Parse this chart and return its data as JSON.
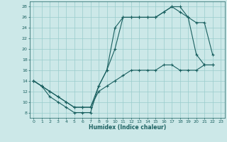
{
  "xlabel": "Humidex (Indice chaleur)",
  "bg_color": "#cce8e8",
  "line_color": "#1a6060",
  "grid_color": "#99cccc",
  "xlim": [
    -0.5,
    23.5
  ],
  "ylim": [
    7,
    29
  ],
  "xticks": [
    0,
    1,
    2,
    3,
    4,
    5,
    6,
    7,
    8,
    9,
    10,
    11,
    12,
    13,
    14,
    15,
    16,
    17,
    18,
    19,
    20,
    21,
    22,
    23
  ],
  "yticks": [
    8,
    10,
    12,
    14,
    16,
    18,
    20,
    22,
    24,
    26,
    28
  ],
  "line1_x": [
    0,
    1,
    2,
    3,
    4,
    5,
    6,
    7,
    8,
    9,
    10,
    11,
    12,
    13,
    14,
    15,
    16,
    17,
    18,
    19,
    20,
    21,
    22
  ],
  "line1_y": [
    14,
    13,
    11,
    10,
    9,
    8,
    8,
    8,
    13,
    16,
    24,
    26,
    26,
    26,
    26,
    26,
    27,
    28,
    28,
    26,
    25,
    25,
    19
  ],
  "line2_x": [
    0,
    1,
    2,
    3,
    4,
    5,
    6,
    7,
    8,
    9,
    10,
    11,
    12,
    13,
    14,
    15,
    16,
    17,
    18,
    19,
    20,
    21,
    22
  ],
  "line2_y": [
    14,
    13,
    12,
    11,
    10,
    9,
    9,
    9,
    13,
    16,
    20,
    26,
    26,
    26,
    26,
    26,
    27,
    28,
    27,
    26,
    19,
    17,
    17
  ],
  "line3_x": [
    0,
    1,
    2,
    3,
    4,
    5,
    6,
    7,
    8,
    9,
    10,
    11,
    12,
    13,
    14,
    15,
    16,
    17,
    18,
    19,
    20,
    21,
    22
  ],
  "line3_y": [
    14,
    13,
    12,
    11,
    10,
    9,
    9,
    9,
    12,
    13,
    14,
    15,
    16,
    16,
    16,
    16,
    17,
    17,
    16,
    16,
    16,
    17,
    17
  ]
}
